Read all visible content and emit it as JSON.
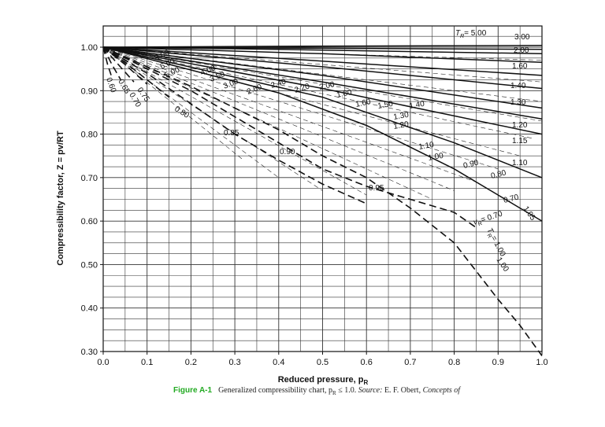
{
  "chart_data": {
    "type": "line",
    "xlabel": "Reduced pressure, p",
    "xlabel_sub": "R",
    "ylabel": "Compressibility factor, Z = pv/RT",
    "xlim": [
      0.0,
      1.0
    ],
    "ylim": [
      0.3,
      1.0
    ],
    "x_ticks": [
      "0.0",
      "0.1",
      "0.2",
      "0.3",
      "0.4",
      "0.5",
      "0.6",
      "0.7",
      "0.8",
      "0.9",
      "1.0"
    ],
    "y_ticks": [
      "0.30",
      "0.40",
      "0.50",
      "0.60",
      "0.70",
      "0.80",
      "0.90",
      "1.00"
    ],
    "grid": true,
    "series": [
      {
        "name": "5.00",
        "style": "solid",
        "x": [
          0,
          0.4,
          1.0
        ],
        "y": [
          1.0,
          1.002,
          1.004
        ]
      },
      {
        "name": "3.00",
        "style": "solid",
        "x": [
          0,
          0.4,
          1.0
        ],
        "y": [
          1.0,
          0.998,
          0.995
        ]
      },
      {
        "name": "2.00",
        "style": "solid",
        "x": [
          0,
          0.4,
          1.0
        ],
        "y": [
          1.0,
          0.995,
          0.985
        ]
      },
      {
        "name": "1.60",
        "style": "solid",
        "x": [
          0,
          0.5,
          1.0
        ],
        "y": [
          1.0,
          0.985,
          0.965
        ]
      },
      {
        "name": "1.40",
        "style": "solid",
        "x": [
          0,
          0.5,
          1.0
        ],
        "y": [
          1.0,
          0.968,
          0.935
        ]
      },
      {
        "name": "1.30",
        "style": "solid",
        "x": [
          0,
          0.5,
          1.0
        ],
        "y": [
          1.0,
          0.955,
          0.905
        ]
      },
      {
        "name": "1.20",
        "style": "solid",
        "x": [
          0,
          0.5,
          1.0
        ],
        "y": [
          1.0,
          0.935,
          0.86
        ]
      },
      {
        "name": "1.15",
        "style": "solid",
        "x": [
          0,
          0.5,
          1.0
        ],
        "y": [
          1.0,
          0.92,
          0.835
        ]
      },
      {
        "name": "1.10",
        "style": "solid",
        "x": [
          0,
          0.5,
          1.0
        ],
        "y": [
          1.0,
          0.905,
          0.8
        ]
      },
      {
        "name": "1.05",
        "style": "solid",
        "x": [
          0,
          0.5,
          0.8,
          1.0
        ],
        "y": [
          1.0,
          0.885,
          0.78,
          0.7
        ]
      },
      {
        "name": "1.00",
        "style": "solid",
        "x": [
          0,
          0.4,
          0.6,
          0.8,
          0.9,
          0.95,
          1.0
        ],
        "y": [
          1.0,
          0.895,
          0.82,
          0.72,
          0.66,
          0.63,
          0.6
        ]
      },
      {
        "name": "0.95",
        "style": "dashed",
        "x": [
          0,
          0.1,
          0.2,
          0.3,
          0.4,
          0.5,
          0.6,
          0.7,
          0.8,
          0.9,
          0.95,
          1.0
        ],
        "y": [
          1.0,
          0.955,
          0.91,
          0.86,
          0.81,
          0.75,
          0.7,
          0.63,
          0.55,
          0.42,
          0.36,
          0.29
        ]
      },
      {
        "name": "0.90",
        "style": "dashed",
        "x": [
          0,
          0.1,
          0.2,
          0.3,
          0.4,
          0.5,
          0.6,
          0.7,
          0.8,
          0.85
        ],
        "y": [
          1.0,
          0.95,
          0.9,
          0.84,
          0.78,
          0.72,
          0.68,
          0.65,
          0.62,
          0.585
        ]
      },
      {
        "name": "0.85",
        "style": "dashed",
        "x": [
          0,
          0.1,
          0.2,
          0.3,
          0.4,
          0.5,
          0.6
        ],
        "y": [
          1.0,
          0.94,
          0.87,
          0.8,
          0.74,
          0.685,
          0.64
        ]
      },
      {
        "name": "0.80",
        "style": "dashed",
        "x": [
          0,
          0.05,
          0.1,
          0.15
        ],
        "y": [
          1.0,
          0.965,
          0.925,
          0.885
        ]
      },
      {
        "name": "0.75",
        "style": "dashed",
        "x": [
          0,
          0.05,
          0.1
        ],
        "y": [
          1.0,
          0.96,
          0.915
        ]
      },
      {
        "name": "0.70",
        "style": "dashed",
        "x": [
          0,
          0.03,
          0.07
        ],
        "y": [
          1.0,
          0.965,
          0.92
        ]
      },
      {
        "name": "0.65",
        "style": "dashed",
        "x": [
          0,
          0.02,
          0.04
        ],
        "y": [
          1.0,
          0.96,
          0.925
        ]
      },
      {
        "name": "0.60",
        "style": "dashed",
        "x": [
          0,
          0.01,
          0.02
        ],
        "y": [
          1.0,
          0.96,
          0.93
        ]
      }
    ],
    "curve_labels": [
      "5.00",
      "3.00",
      "2.00",
      "1.60",
      "1.40",
      "1.30",
      "1.20",
      "1.15",
      "1.10",
      "1.05",
      "1.00",
      "0.95",
      "0.90",
      "0.85",
      "0.80",
      "0.75",
      "0.70",
      "0.65",
      "0.60",
      "8.00",
      "6.00",
      "5.00",
      "4.00",
      "3.50",
      "3.00",
      "2.60",
      "2.40",
      "2.20",
      "2.00",
      "1.80",
      "1.60",
      "1.50",
      "1.40",
      "1.30",
      "1.20",
      "1.10",
      "1.00",
      "0.90",
      "0.80",
      "0.70",
      "0.90",
      "0.85",
      "0.95",
      "0.80",
      "0.75",
      "0.70",
      "0.65",
      "0.60"
    ],
    "annotations": {
      "tr_label": "T",
      "tr_sub": "R",
      "tr_value": "= 5.00",
      "vr_label": "v",
      "vr_sub": "R",
      "vr_value": "= 0.70",
      "tr2_value": "= 1.00"
    }
  },
  "caption": {
    "figure": "Figure A-1",
    "text": "Generalized compressibility chart, p",
    "text_sub": "R",
    "text2": " ≤ 1.0. ",
    "source_label": "Source:",
    "source_text": " E. F. Obert, ",
    "source_book": "Concepts of"
  }
}
